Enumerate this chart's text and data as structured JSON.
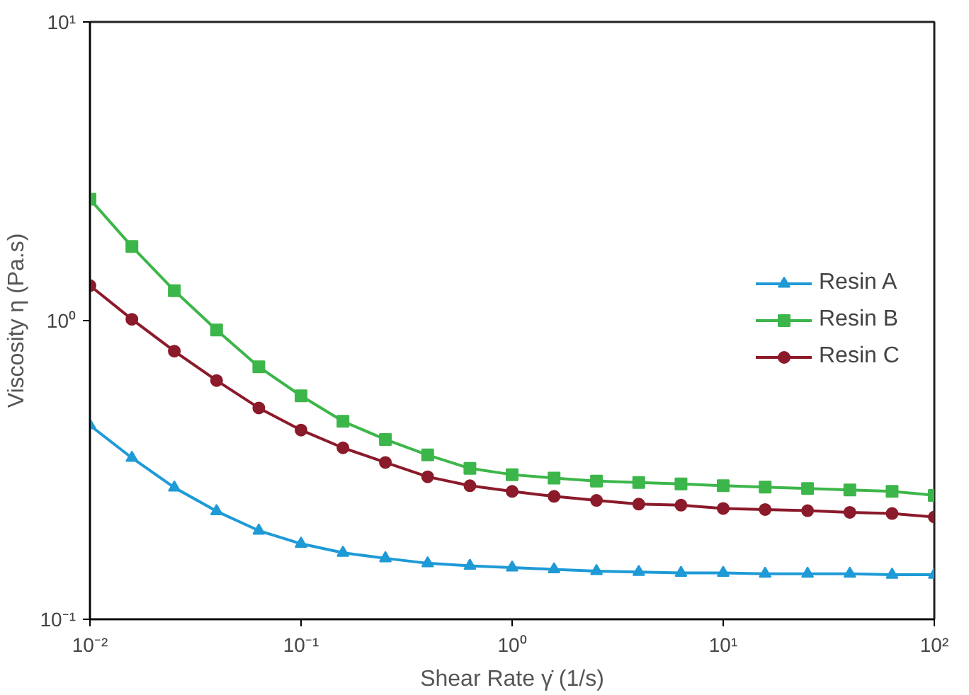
{
  "chart_data": {
    "type": "line",
    "xlabel": "Shear Rate γ̇ (1/s)",
    "ylabel": "Viscosity η (Pa.s)",
    "log": "xy",
    "x": [
      0.01,
      0.0158,
      0.0251,
      0.0398,
      0.0631,
      0.1,
      0.158,
      0.251,
      0.398,
      0.631,
      1,
      1.58,
      2.51,
      3.98,
      6.31,
      10,
      15.8,
      25.1,
      39.8,
      63.1,
      100
    ],
    "series": [
      {
        "name": "Resin A",
        "color": "#1e9ad6",
        "marker": "triangle",
        "values": [
          0.446,
          0.347,
          0.276,
          0.23,
          0.198,
          0.179,
          0.167,
          0.16,
          0.154,
          0.151,
          0.149,
          0.147,
          0.145,
          0.144,
          0.143,
          0.143,
          0.142,
          0.142,
          0.142,
          0.141,
          0.141
        ]
      },
      {
        "name": "Resin B",
        "color": "#3cb64a",
        "marker": "square",
        "values": [
          2.55,
          1.77,
          1.26,
          0.93,
          0.7,
          0.56,
          0.46,
          0.4,
          0.355,
          0.32,
          0.305,
          0.297,
          0.29,
          0.287,
          0.284,
          0.28,
          0.277,
          0.274,
          0.271,
          0.268,
          0.26
        ]
      },
      {
        "name": "Resin C",
        "color": "#8b1a2a",
        "marker": "circle",
        "values": [
          1.31,
          1.01,
          0.79,
          0.63,
          0.51,
          0.43,
          0.375,
          0.335,
          0.3,
          0.28,
          0.268,
          0.258,
          0.25,
          0.243,
          0.241,
          0.235,
          0.233,
          0.231,
          0.228,
          0.226,
          0.22
        ]
      }
    ],
    "xlim": [
      0.01,
      100
    ],
    "ylim": [
      0.1,
      10
    ],
    "xticks": [
      {
        "value": 0.01,
        "label": "10⁻²"
      },
      {
        "value": 0.1,
        "label": "10⁻¹"
      },
      {
        "value": 1,
        "label": "10⁰"
      },
      {
        "value": 10,
        "label": "10¹"
      },
      {
        "value": 100,
        "label": "10²"
      }
    ],
    "yticks": [
      {
        "value": 0.1,
        "label": "10⁻¹"
      },
      {
        "value": 1,
        "label": "10⁰"
      },
      {
        "value": 10,
        "label": "10¹"
      }
    ],
    "grid": false,
    "legend": "right",
    "line_style": "solid"
  }
}
